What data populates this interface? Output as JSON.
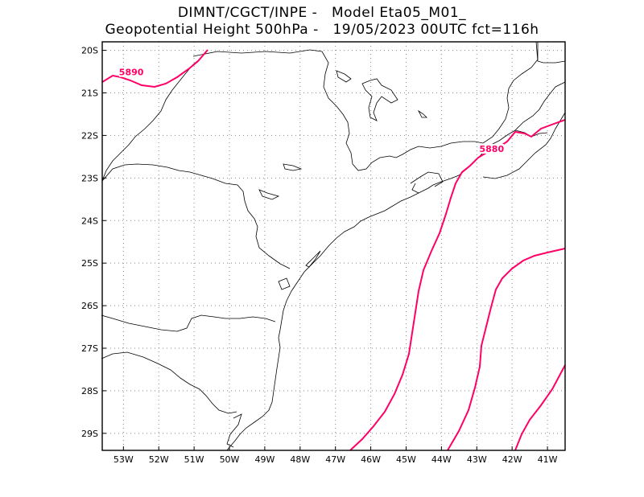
{
  "title": {
    "line1": "DIMNT/CGCT/INPE -   Model Eta05_M01_",
    "line2": "Geopotential Height 500hPa -   19/05/2023 00UTC fct=116h"
  },
  "axes": {
    "lon_ticks": [
      "53W",
      "52W",
      "51W",
      "50W",
      "49W",
      "48W",
      "47W",
      "46W",
      "45W",
      "44W",
      "43W",
      "42W",
      "41W"
    ],
    "lat_ticks": [
      "20S",
      "21S",
      "22S",
      "23S",
      "24S",
      "25S",
      "26S",
      "27S",
      "28S",
      "29S"
    ],
    "lon_range": [
      -53.6,
      -40.5
    ],
    "lat_range": [
      -29.4,
      -19.8
    ]
  },
  "colors": {
    "contour": "#ff0066",
    "coast": "#000000",
    "grid": "#888888"
  },
  "contours": [
    {
      "label": "5890",
      "label_lon": -52.8,
      "label_lat": -20.55
    },
    {
      "label": "5880",
      "label_lon": -42.6,
      "label_lat": -22.35
    }
  ],
  "chart_data": {
    "type": "map",
    "region": "Southeastern / Southern Brazil",
    "field": "Geopotential Height 500hPa",
    "contour_values": [
      5890,
      5880
    ],
    "grid": true
  }
}
